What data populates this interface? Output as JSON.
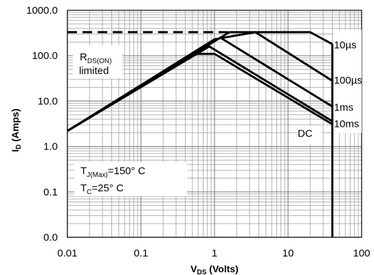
{
  "chart_data": {
    "type": "line",
    "title": "",
    "x_scale": "log",
    "y_scale": "log",
    "xlim": [
      0.01,
      100
    ],
    "ylim": [
      1,
      10000
    ],
    "x_ticks": [
      {
        "value": 0.01,
        "label": "0.01"
      },
      {
        "value": 0.1,
        "label": "0.1"
      },
      {
        "value": 1,
        "label": "1"
      },
      {
        "value": 10,
        "label": "10"
      },
      {
        "value": 100,
        "label": "100"
      }
    ],
    "y_ticks": [
      {
        "value": 1,
        "label": "0.0"
      },
      {
        "value": 10,
        "label": "0.1"
      },
      {
        "value": 100,
        "label": "1.0"
      },
      {
        "value": 1000,
        "label": "10.0"
      },
      {
        "value": 10000,
        "label": "100.0"
      },
      {
        "value": 100000,
        "label": "1000.0"
      }
    ],
    "xlabel": {
      "main": "V",
      "sub": "DS",
      "suffix": " (Volts)"
    },
    "ylabel": {
      "main": "I",
      "sub": "D",
      "suffix": " (Amps)"
    },
    "grid": true,
    "series": [
      {
        "name": "10µs",
        "points": [
          [
            0.01,
            2.2
          ],
          [
            1.6,
            330
          ],
          [
            20,
            330
          ],
          [
            40,
            180
          ]
        ],
        "dash": false
      },
      {
        "name": "100µs",
        "points": [
          [
            0.01,
            2.2
          ],
          [
            1.0,
            230
          ],
          [
            3.6,
            330
          ],
          [
            40,
            28
          ]
        ],
        "dash": false
      },
      {
        "name": "1ms",
        "points": [
          [
            0.01,
            2.2
          ],
          [
            1.2,
            250
          ],
          [
            40,
            7.6
          ]
        ],
        "dash": false
      },
      {
        "name": "10ms",
        "points": [
          [
            0.01,
            2.2
          ],
          [
            0.85,
            160
          ],
          [
            40,
            3.6
          ]
        ],
        "dash": false
      },
      {
        "name": "DC",
        "points": [
          [
            0.55,
            110
          ],
          [
            1.0,
            110
          ],
          [
            40,
            3.1
          ]
        ],
        "dash": false
      },
      {
        "name": "",
        "points": [
          [
            0.01,
            330
          ],
          [
            1.6,
            330
          ]
        ],
        "dash": true
      },
      {
        "name": "",
        "points": [
          [
            40,
            180
          ],
          [
            40,
            0.0009
          ]
        ],
        "dash": false
      }
    ],
    "curve_labels": [
      {
        "text": "10µs",
        "x": 42,
        "y": 180
      },
      {
        "text": "100µs",
        "x": 42,
        "y": 30
      },
      {
        "text": "1ms",
        "x": 42,
        "y": 7.6
      },
      {
        "text": "10ms",
        "x": 42,
        "y": 3.3
      },
      {
        "text": "DC",
        "x": 13.5,
        "y": 2.0
      }
    ],
    "annotations": {
      "rds_main": "R",
      "rds_sub": "DS(ON)",
      "rds_line2": "limited",
      "tj_main": "T",
      "tj_sub": "J(Max)",
      "tj_suffix": "=150° C",
      "tc_main": "T",
      "tc_sub": "C",
      "tc_suffix": "=25° C"
    }
  }
}
